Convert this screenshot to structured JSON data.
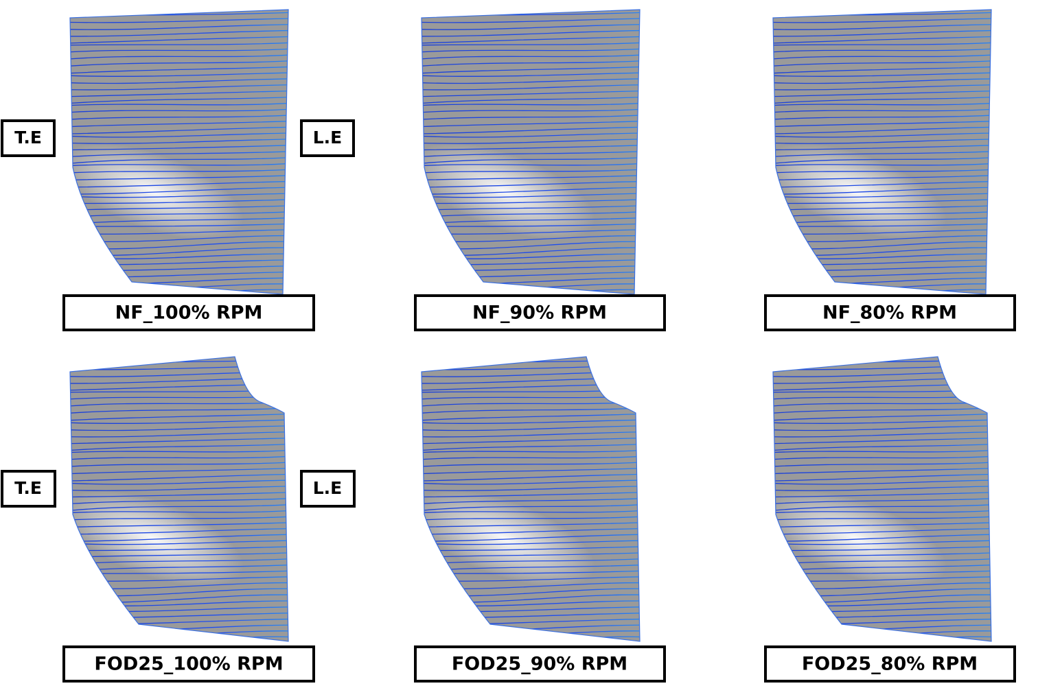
{
  "rows": [
    {
      "left_label": "T.E",
      "right_label": "L.E",
      "panels": [
        {
          "label": "NF_100% RPM"
        },
        {
          "label": "NF_90% RPM"
        },
        {
          "label": "NF_80% RPM"
        }
      ]
    },
    {
      "left_label": "T.E",
      "right_label": "L.E",
      "panels": [
        {
          "label": "FOD25_100% RPM"
        },
        {
          "label": "FOD25_90% RPM"
        },
        {
          "label": "FOD25_80% RPM"
        }
      ]
    }
  ]
}
